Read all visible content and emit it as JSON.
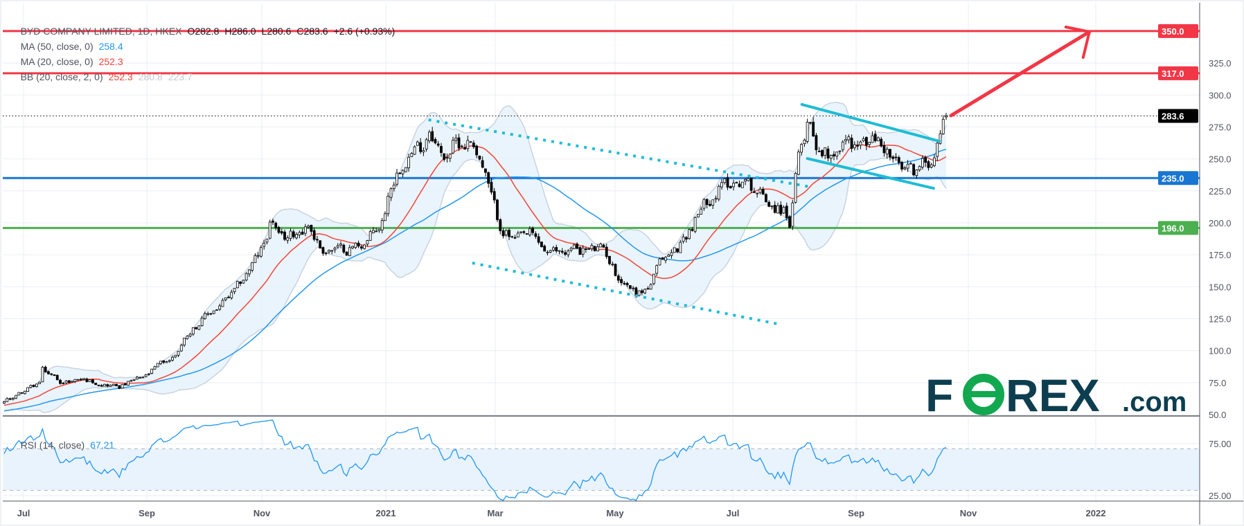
{
  "legend": {
    "title": "BYD COMPANY LIMITED, 1D, HKEX",
    "open": "O282.8",
    "high": "H286.0",
    "low": "L280.6",
    "close": "C283.6",
    "change": "+2.6 (+0.93%)",
    "ma50_label": "MA (50, close, 0)",
    "ma50_value": "258.4",
    "ma20_label": "MA (20, close, 0)",
    "ma20_value": "252.3",
    "bb_label": "BB (20, close, 2, 0)",
    "bb_basis": "252.3",
    "bb_upper": "280.8",
    "bb_lower": "223.7",
    "rsi_label": "RSI (14, close)",
    "rsi_value": "67.21"
  },
  "logo": {
    "text": "FOREX.com",
    "main": "F",
    "o": "O",
    "rest": "REX",
    "suffix": ".com"
  },
  "colors": {
    "ma50": "#2196f3",
    "ma20": "#f44336",
    "bb_fill": "#e3f0fb",
    "bb_border": "#c9d3df",
    "resistance": "#f23645",
    "support_blue": "#1976d2",
    "support_green": "#4caf50",
    "trend_cyan": "#1ebcd6",
    "rsi": "#2196f3",
    "rsi_band": "#e8f3fd",
    "logo_dark": "#0d3e4f",
    "logo_green": "#12a850"
  },
  "chart_data": {
    "type": "candlestick",
    "title": "BYD COMPANY LIMITED, 1D, HKEX",
    "last_bar": {
      "open": 282.8,
      "high": 286.0,
      "low": 280.6,
      "close": 283.6,
      "change": 2.6,
      "change_pct": 0.93
    },
    "x_unit": "months since Jul 2020",
    "x_ticks": [
      {
        "t": 0,
        "label": "Jul"
      },
      {
        "t": 2,
        "label": "Sep"
      },
      {
        "t": 4,
        "label": "Nov"
      },
      {
        "t": 6,
        "label": "2021"
      },
      {
        "t": 8,
        "label": "Mar"
      },
      {
        "t": 10,
        "label": "May"
      },
      {
        "t": 12,
        "label": "Jul"
      },
      {
        "t": 14,
        "label": "Sep"
      },
      {
        "t": 16,
        "label": "Nov"
      },
      {
        "t": 18,
        "label": "2022"
      }
    ],
    "ylim": [
      50,
      350
    ],
    "y_ticks": [
      "50.0",
      "75.0",
      "100.0",
      "125.0",
      "150.0",
      "175.0",
      "200.0",
      "225.0",
      "250.0",
      "275.0",
      "300.0",
      "325.0"
    ],
    "y_tick_values": [
      50,
      75,
      100,
      125,
      150,
      175,
      200,
      225,
      250,
      275,
      300,
      325
    ],
    "rsi_ticks": [
      "75.00",
      "25.00"
    ],
    "rsi_tick_values": [
      75,
      25
    ],
    "rsi_bands": [
      70,
      30
    ],
    "price_path": [
      [
        -3,
        45
      ],
      [
        -1.5,
        52
      ],
      [
        -0.31,
        60
      ],
      [
        0.26,
        75
      ],
      [
        0.3,
        85
      ],
      [
        0.65,
        75
      ],
      [
        0.91,
        78
      ],
      [
        1.55,
        72
      ],
      [
        2.0,
        80
      ],
      [
        2.2,
        88
      ],
      [
        2.47,
        95
      ],
      [
        2.73,
        115
      ],
      [
        2.99,
        125
      ],
      [
        3.26,
        135
      ],
      [
        3.53,
        145
      ],
      [
        3.8,
        165
      ],
      [
        4.02,
        180
      ],
      [
        4.16,
        205
      ],
      [
        4.29,
        185
      ],
      [
        4.48,
        190
      ],
      [
        4.75,
        200
      ],
      [
        4.95,
        180
      ],
      [
        5.28,
        178
      ],
      [
        5.68,
        185
      ],
      [
        5.94,
        200
      ],
      [
        6.08,
        230
      ],
      [
        6.38,
        255
      ],
      [
        6.67,
        260
      ],
      [
        6.81,
        278
      ],
      [
        7.03,
        250
      ],
      [
        7.25,
        262
      ],
      [
        7.6,
        265
      ],
      [
        7.76,
        245
      ],
      [
        7.89,
        225
      ],
      [
        8.06,
        200
      ],
      [
        8.31,
        185
      ],
      [
        8.58,
        190
      ],
      [
        8.91,
        175
      ],
      [
        9.3,
        180
      ],
      [
        9.83,
        178
      ],
      [
        10.02,
        160
      ],
      [
        10.38,
        145
      ],
      [
        10.58,
        150
      ],
      [
        10.79,
        170
      ],
      [
        11.06,
        180
      ],
      [
        11.33,
        200
      ],
      [
        11.6,
        220
      ],
      [
        11.87,
        230
      ],
      [
        12.14,
        235
      ],
      [
        12.4,
        225
      ],
      [
        12.65,
        215
      ],
      [
        12.84,
        210
      ],
      [
        12.94,
        200
      ],
      [
        13.03,
        240
      ],
      [
        13.17,
        270
      ],
      [
        13.22,
        285
      ],
      [
        13.36,
        262
      ],
      [
        13.55,
        255
      ],
      [
        13.81,
        265
      ],
      [
        14.07,
        260
      ],
      [
        14.36,
        265
      ],
      [
        14.57,
        255
      ],
      [
        14.79,
        240
      ],
      [
        15.07,
        240
      ],
      [
        15.28,
        248
      ],
      [
        15.41,
        260
      ],
      [
        15.55,
        281
      ],
      [
        15.6,
        283.6
      ]
    ],
    "levels": [
      {
        "value": 350.0,
        "label": "350.0",
        "color": "#f23645"
      },
      {
        "value": 317.0,
        "label": "317.0",
        "color": "#f23645"
      },
      {
        "value": 235.0,
        "label": "235.0",
        "color": "#1976d2"
      },
      {
        "value": 196.0,
        "label": "196.0",
        "color": "#4caf50"
      }
    ],
    "last_price_label": "283.6",
    "last_price": 283.6,
    "trendlines": [
      {
        "name": "upper-dotted-trendline",
        "style": "dotted",
        "from": [
          6.78,
          280.6
        ],
        "to": [
          13.26,
          228.1
        ]
      },
      {
        "name": "lower-dotted-trendline",
        "style": "dotted",
        "from": [
          7.58,
          168.6
        ],
        "to": [
          12.73,
          120.9
        ]
      },
      {
        "name": "channel-upper-line",
        "style": "solid",
        "from": [
          13.12,
          292.6
        ],
        "to": [
          15.48,
          263.9
        ]
      },
      {
        "name": "channel-lower-line",
        "style": "solid",
        "from": [
          13.21,
          250.3
        ],
        "to": [
          15.38,
          227.0
        ]
      }
    ],
    "arrow": {
      "from": [
        15.69,
        283.9
      ],
      "to": [
        17.9,
        349.4
      ]
    },
    "indicators": [
      "MA 50",
      "MA 20",
      "BB 20,2",
      "RSI 14"
    ]
  }
}
